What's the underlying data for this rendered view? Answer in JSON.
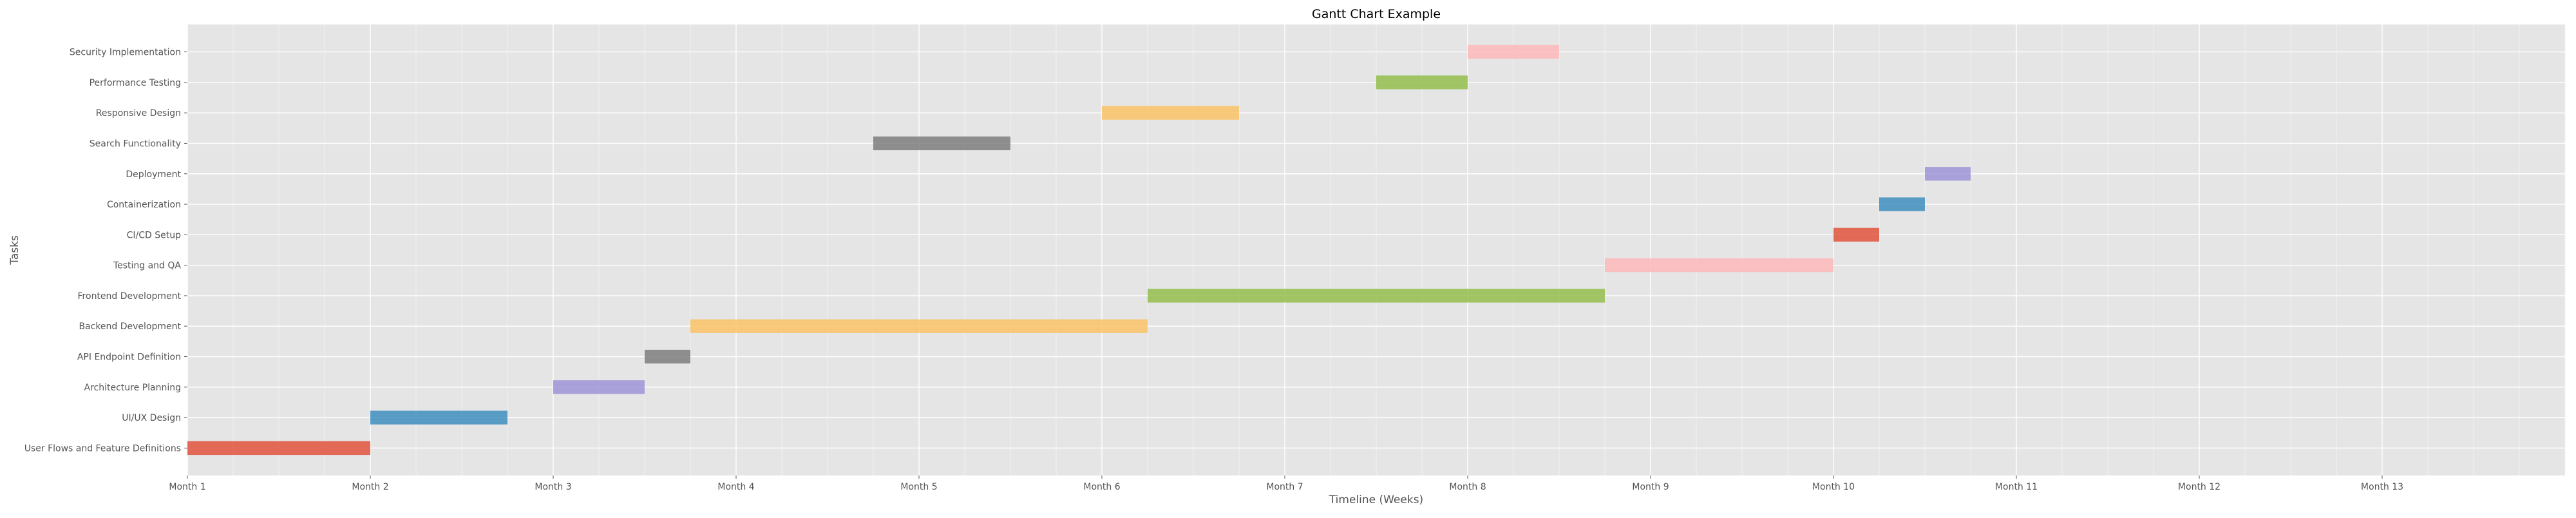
{
  "chart_data": {
    "type": "bar",
    "orientation": "horizontal",
    "title": "Gantt Chart Example",
    "xlabel": "Timeline (Weeks)",
    "ylabel": "Tasks",
    "x_unit": "weeks",
    "xlim": [
      0,
      52
    ],
    "x_ticks": [
      {
        "value": 0,
        "label": "Month 1"
      },
      {
        "value": 4,
        "label": "Month 2"
      },
      {
        "value": 8,
        "label": "Month 3"
      },
      {
        "value": 12,
        "label": "Month 4"
      },
      {
        "value": 16,
        "label": "Month 5"
      },
      {
        "value": 20,
        "label": "Month 6"
      },
      {
        "value": 24,
        "label": "Month 7"
      },
      {
        "value": 28,
        "label": "Month 8"
      },
      {
        "value": 32,
        "label": "Month 9"
      },
      {
        "value": 36,
        "label": "Month 10"
      },
      {
        "value": 40,
        "label": "Month 11"
      },
      {
        "value": 44,
        "label": "Month 12"
      },
      {
        "value": 48,
        "label": "Month 13"
      }
    ],
    "grid": true,
    "minor_grid_step": 1,
    "tasks": [
      {
        "name": "User Flows and Feature Definitions",
        "start": 0,
        "duration": 4,
        "color": "#E24A33"
      },
      {
        "name": "UI/UX Design",
        "start": 4,
        "duration": 3,
        "color": "#348ABD"
      },
      {
        "name": "Architecture Planning",
        "start": 8,
        "duration": 2,
        "color": "#988ED5"
      },
      {
        "name": "API Endpoint Definition",
        "start": 10,
        "duration": 1,
        "color": "#777777"
      },
      {
        "name": "Backend Development",
        "start": 11,
        "duration": 10,
        "color": "#FBC15E"
      },
      {
        "name": "Frontend Development",
        "start": 21,
        "duration": 10,
        "color": "#8EBA42"
      },
      {
        "name": "Testing and QA",
        "start": 31,
        "duration": 5,
        "color": "#FFB5B8"
      },
      {
        "name": "CI/CD Setup",
        "start": 36,
        "duration": 1,
        "color": "#E24A33"
      },
      {
        "name": "Containerization",
        "start": 37,
        "duration": 1,
        "color": "#348ABD"
      },
      {
        "name": "Deployment",
        "start": 38,
        "duration": 1,
        "color": "#988ED5"
      },
      {
        "name": "Search Functionality",
        "start": 15,
        "duration": 3,
        "color": "#777777"
      },
      {
        "name": "Responsive Design",
        "start": 20,
        "duration": 3,
        "color": "#FBC15E"
      },
      {
        "name": "Performance Testing",
        "start": 26,
        "duration": 2,
        "color": "#8EBA42"
      },
      {
        "name": "Security Implementation",
        "start": 28,
        "duration": 2,
        "color": "#FFB5B8"
      }
    ]
  }
}
